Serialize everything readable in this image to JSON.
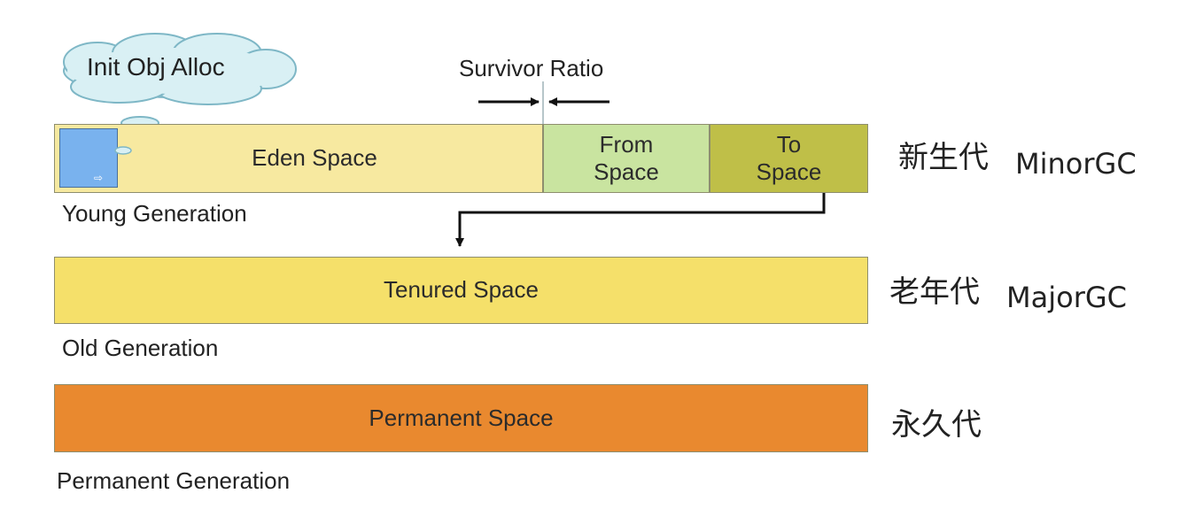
{
  "init_obj_alloc": "Init Obj Alloc",
  "survivor_ratio": "Survivor Ratio",
  "young": {
    "eden": "Eden Space",
    "from_line1": "From",
    "from_line2": "Space",
    "to_line1": "To",
    "to_line2": "Space",
    "generation_label": "Young Generation",
    "cn_label": "新生代",
    "gc_label": "MinorGC"
  },
  "old": {
    "space": "Tenured Space",
    "generation_label": "Old Generation",
    "cn_label": "老年代",
    "gc_label": "MajorGC"
  },
  "perm": {
    "space": "Permanent Space",
    "generation_label": "Permanent Generation",
    "cn_label": "永久代"
  },
  "colors": {
    "eden": "#f7e9a0",
    "from": "#c9e4a0",
    "to": "#bfbf48",
    "tenured": "#f5e06a",
    "permanent": "#e9892f",
    "object": "#79b2ee",
    "cloud": "#d9f0f4"
  }
}
